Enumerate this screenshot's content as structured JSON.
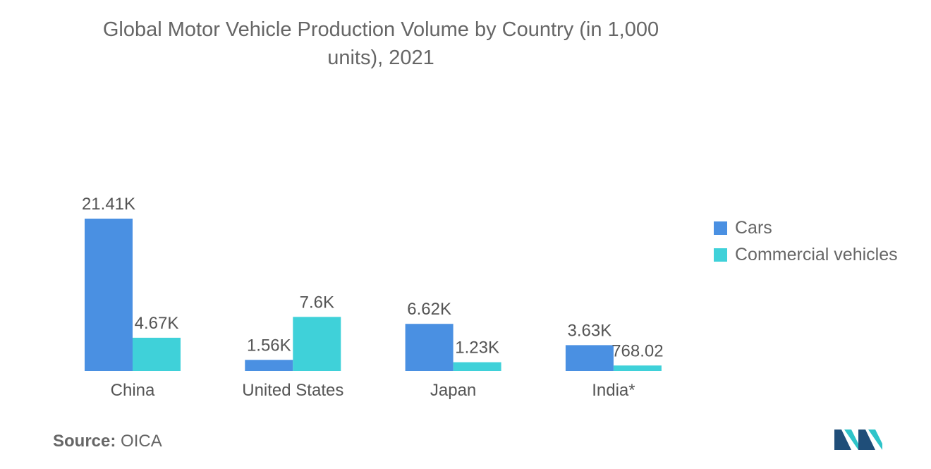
{
  "title_line1": "Global Motor Vehicle Production Volume by Country (in 1,000",
  "title_line2": "units), 2021",
  "chart_data": {
    "type": "bar",
    "title": "Global Motor Vehicle Production Volume by Country (in 1,000 units), 2021",
    "categories": [
      "China",
      "United States",
      "Japan",
      "India*"
    ],
    "series": [
      {
        "name": "Cars",
        "values": [
          21410,
          1560,
          6620,
          3630
        ],
        "labels": [
          "21.41K",
          "1.56K",
          "6.62K",
          "3.63K"
        ],
        "color": "#4a90e2"
      },
      {
        "name": "Commercial vehicles",
        "values": [
          4670,
          7600,
          1230,
          768.02
        ],
        "labels": [
          "4.67K",
          "7.6K",
          "1.23K",
          "768.02"
        ],
        "color": "#3fd1d9"
      }
    ],
    "ylim": [
      0,
      21410
    ],
    "grid": false,
    "legend": "right"
  },
  "source": {
    "label": "Source:",
    "value": "OICA"
  },
  "logo": {
    "icon": "mordor-intelligence-logo",
    "colors": [
      "#1f4e79",
      "#2ec4c9"
    ]
  }
}
